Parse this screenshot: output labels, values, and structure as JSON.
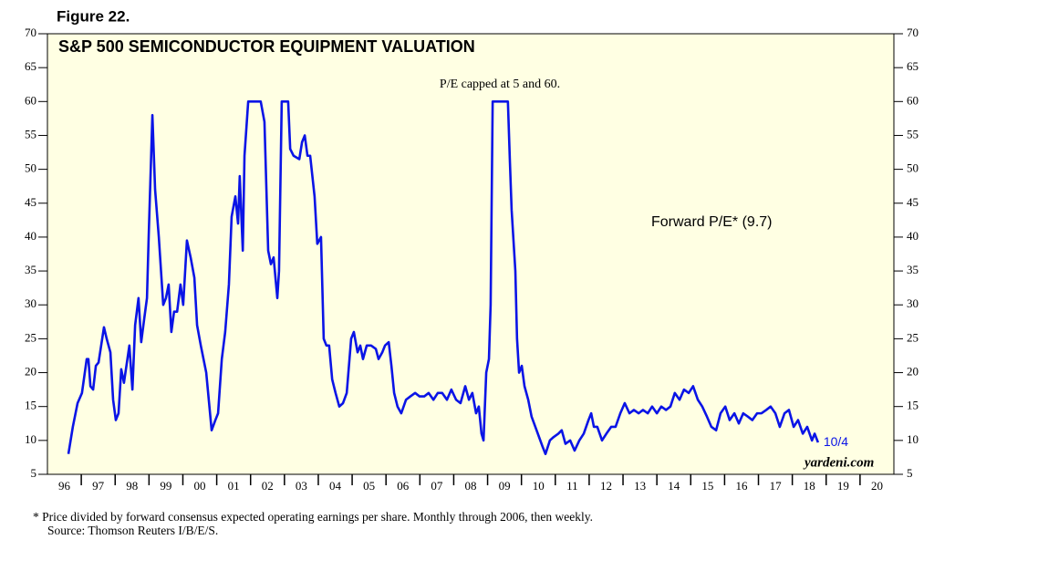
{
  "chart_data": {
    "type": "line",
    "figure_label": "Figure 22.",
    "title": "S&P 500 SEMICONDUCTOR EQUIPMENT VALUATION",
    "annotation": "P/E capped at 5 and 60.",
    "end_label": "10/4",
    "source_mark": "yardeni.com",
    "footnotes": [
      "*  Price divided by forward consensus expected operating earnings per share. Monthly through 2006, then weekly.",
      "Source: Thomson Reuters I/B/E/S."
    ],
    "xlim": [
      1996,
      2021
    ],
    "ylim": [
      5,
      70
    ],
    "yticks": [
      5,
      10,
      15,
      20,
      25,
      30,
      35,
      40,
      45,
      50,
      55,
      60,
      65,
      70
    ],
    "y_axis_sides": [
      "left",
      "right"
    ],
    "xticks": [
      {
        "value": 1996.5,
        "label": "96"
      },
      {
        "value": 1997.5,
        "label": "97"
      },
      {
        "value": 1998.5,
        "label": "98"
      },
      {
        "value": 1999.5,
        "label": "99"
      },
      {
        "value": 2000.5,
        "label": "00"
      },
      {
        "value": 2001.5,
        "label": "01"
      },
      {
        "value": 2002.5,
        "label": "02"
      },
      {
        "value": 2003.5,
        "label": "03"
      },
      {
        "value": 2004.5,
        "label": "04"
      },
      {
        "value": 2005.5,
        "label": "05"
      },
      {
        "value": 2006.5,
        "label": "06"
      },
      {
        "value": 2007.5,
        "label": "07"
      },
      {
        "value": 2008.5,
        "label": "08"
      },
      {
        "value": 2009.5,
        "label": "09"
      },
      {
        "value": 2010.5,
        "label": "10"
      },
      {
        "value": 2011.5,
        "label": "11"
      },
      {
        "value": 2012.5,
        "label": "12"
      },
      {
        "value": 2013.5,
        "label": "13"
      },
      {
        "value": 2014.5,
        "label": "14"
      },
      {
        "value": 2015.5,
        "label": "15"
      },
      {
        "value": 2016.5,
        "label": "16"
      },
      {
        "value": 2017.5,
        "label": "17"
      },
      {
        "value": 2018.5,
        "label": "18"
      },
      {
        "value": 2019.5,
        "label": "19"
      },
      {
        "value": 2020.5,
        "label": "20"
      }
    ],
    "xtick_marks": [
      1997,
      1998,
      1999,
      2000,
      2001,
      2002,
      2003,
      2004,
      2005,
      2006,
      2007,
      2008,
      2009,
      2010,
      2011,
      2012,
      2013,
      2014,
      2015,
      2016,
      2017,
      2018,
      2019,
      2020
    ],
    "grid": false,
    "background": "#ffffe3",
    "series": [
      {
        "name": "Forward P/E* (9.7)",
        "color": "#0a14e6",
        "x": [
          1996.62,
          1996.75,
          1996.89,
          1997.02,
          1997.16,
          1997.21,
          1997.27,
          1997.35,
          1997.43,
          1997.51,
          1997.67,
          1997.75,
          1997.86,
          1997.94,
          1998.02,
          1998.1,
          1998.18,
          1998.26,
          1998.42,
          1998.51,
          1998.59,
          1998.69,
          1998.77,
          1998.86,
          1998.94,
          1998.99,
          1999.1,
          1999.18,
          1999.29,
          1999.42,
          1999.5,
          1999.58,
          1999.66,
          1999.74,
          1999.83,
          1999.93,
          2000.01,
          2000.12,
          2000.23,
          2000.34,
          2000.42,
          2000.53,
          2000.69,
          2000.85,
          2000.96,
          2001.04,
          2001.15,
          2001.25,
          2001.36,
          2001.44,
          2001.55,
          2001.63,
          2001.68,
          2001.77,
          2001.82,
          2001.93,
          2002.03,
          2002.3,
          2002.41,
          2002.52,
          2002.6,
          2002.68,
          2002.79,
          2002.84,
          2002.92,
          2003.11,
          2003.17,
          2003.27,
          2003.44,
          2003.52,
          2003.6,
          2003.68,
          2003.76,
          2003.89,
          2003.97,
          2004.08,
          2004.16,
          2004.24,
          2004.32,
          2004.41,
          2004.51,
          2004.62,
          2004.73,
          2004.84,
          2004.97,
          2005.05,
          2005.16,
          2005.24,
          2005.32,
          2005.43,
          2005.56,
          2005.7,
          2005.78,
          2005.89,
          2005.97,
          2006.08,
          2006.16,
          2006.24,
          2006.34,
          2006.45,
          2006.59,
          2006.72,
          2006.86,
          2006.99,
          2007.13,
          2007.26,
          2007.4,
          2007.53,
          2007.66,
          2007.8,
          2007.93,
          2008.07,
          2008.2,
          2008.34,
          2008.45,
          2008.55,
          2008.66,
          2008.74,
          2008.82,
          2008.88,
          2008.96,
          2009.04,
          2009.09,
          2009.15,
          2009.6,
          2009.66,
          2009.71,
          2009.82,
          2009.87,
          2009.93,
          2010.01,
          2010.09,
          2010.2,
          2010.3,
          2010.41,
          2010.52,
          2010.63,
          2010.71,
          2010.84,
          2010.95,
          2011.09,
          2011.19,
          2011.3,
          2011.44,
          2011.57,
          2011.71,
          2011.84,
          2011.98,
          2012.06,
          2012.14,
          2012.24,
          2012.38,
          2012.51,
          2012.65,
          2012.78,
          2012.92,
          2013.05,
          2013.19,
          2013.32,
          2013.46,
          2013.59,
          2013.73,
          2013.86,
          2014.0,
          2014.13,
          2014.27,
          2014.4,
          2014.53,
          2014.67,
          2014.8,
          2014.94,
          2015.07,
          2015.21,
          2015.34,
          2015.48,
          2015.61,
          2015.75,
          2015.88,
          2016.02,
          2016.15,
          2016.29,
          2016.42,
          2016.55,
          2016.69,
          2016.82,
          2016.96,
          2017.09,
          2017.23,
          2017.36,
          2017.5,
          2017.63,
          2017.77,
          2017.9,
          2018.04,
          2018.17,
          2018.31,
          2018.44,
          2018.58,
          2018.66,
          2018.76
        ],
        "values": [
          8,
          12,
          15.5,
          17,
          22,
          22,
          18,
          17.5,
          21,
          21.5,
          26.7,
          25,
          23,
          16,
          13,
          14,
          20.5,
          18.5,
          24,
          17.5,
          27,
          31,
          24.5,
          28,
          31,
          40,
          58,
          47,
          40,
          30,
          31,
          33,
          26,
          29,
          29,
          33,
          30,
          39.5,
          37,
          34,
          27,
          24,
          20,
          11.5,
          13,
          14,
          22,
          26,
          33,
          43,
          46,
          42,
          49,
          38,
          52,
          60,
          60,
          60,
          57,
          38,
          36,
          37,
          31,
          35,
          60,
          60,
          53,
          52,
          51.5,
          54,
          55,
          52,
          52,
          46,
          39,
          40,
          25,
          24,
          24,
          19,
          17,
          15,
          15.5,
          17,
          25,
          26,
          23,
          24,
          22,
          24,
          24,
          23.5,
          22,
          23,
          24,
          24.5,
          21,
          17,
          15,
          14,
          16,
          16.5,
          17,
          16.5,
          16.5,
          17,
          16,
          17,
          17,
          16,
          17.5,
          16,
          15.5,
          18,
          16,
          17,
          14,
          15,
          11,
          10,
          20,
          22,
          30,
          60,
          60,
          51,
          44,
          35,
          25,
          20,
          21,
          18,
          16,
          13.5,
          12,
          10.5,
          9,
          8,
          10,
          10.5,
          11,
          11.5,
          9.5,
          10,
          8.5,
          10,
          11,
          13,
          14,
          12,
          12,
          10,
          11,
          12,
          12,
          14,
          15.5,
          14,
          14.5,
          14,
          14.5,
          14,
          15,
          14,
          15,
          14.5,
          15,
          17,
          16,
          17.5,
          17,
          18,
          16,
          15,
          13.5,
          12,
          11.5,
          14,
          15,
          13,
          14,
          12.5,
          14,
          13.5,
          13,
          14,
          14,
          14.5,
          15,
          14,
          12,
          14,
          14.5,
          12,
          13,
          11,
          12,
          10,
          11,
          9.7
        ]
      }
    ]
  }
}
